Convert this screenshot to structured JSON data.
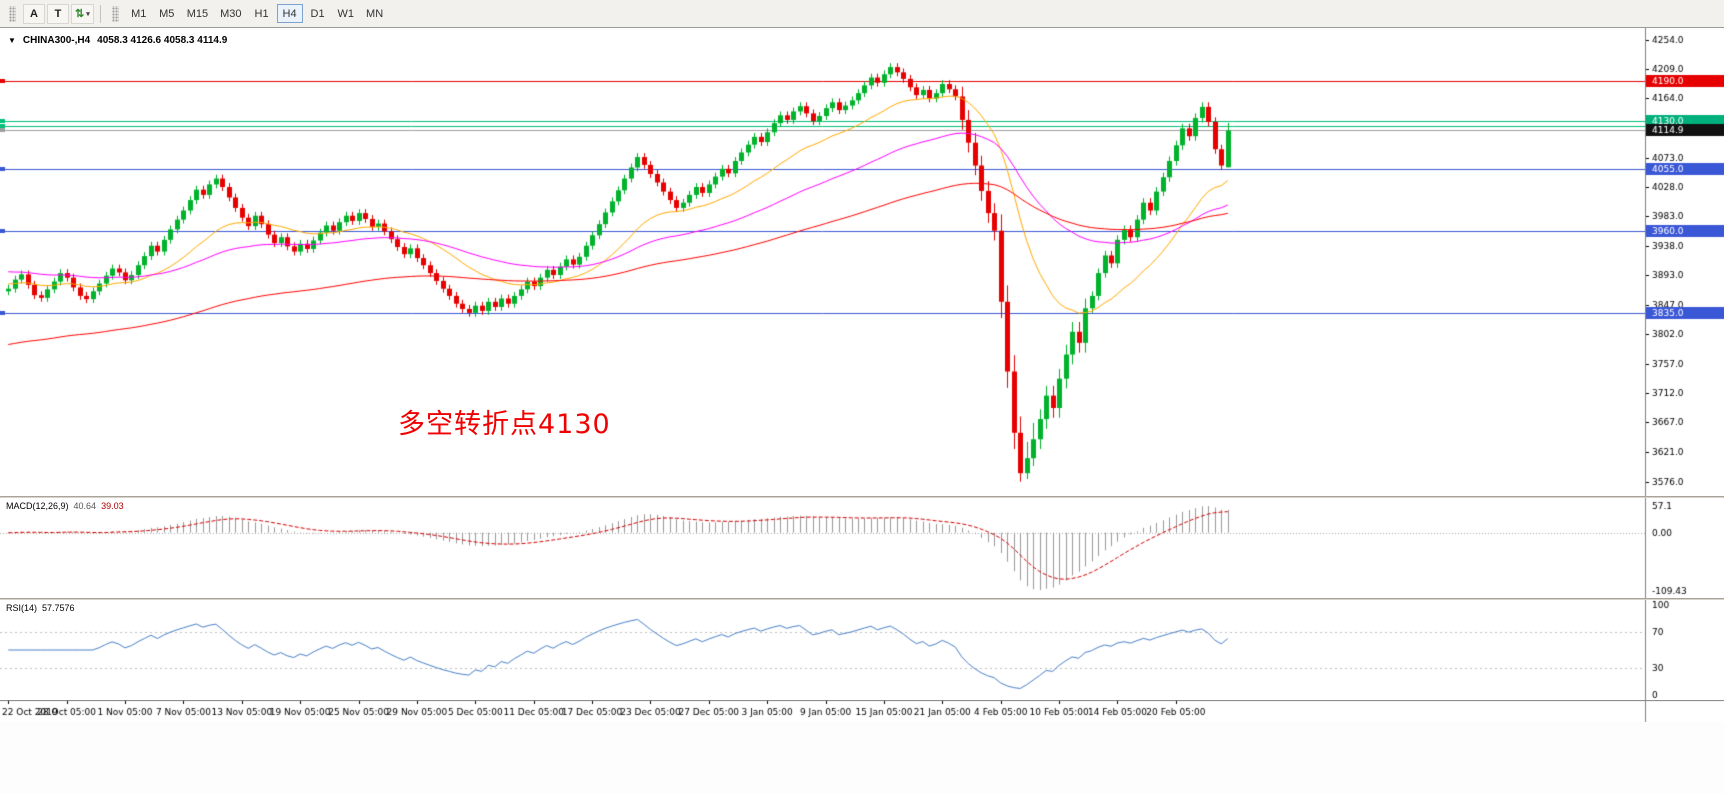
{
  "toolbar": {
    "tools": [
      {
        "label": "A"
      },
      {
        "label": "T"
      }
    ],
    "timeframes": [
      "M1",
      "M5",
      "M15",
      "M30",
      "H1",
      "H4",
      "D1",
      "W1",
      "MN"
    ],
    "active_timeframe": "H4"
  },
  "chart_data": {
    "type": "candlestick",
    "symbol_period": "CHINA300-,H4",
    "ohlc_text": "4058.3 4126.6 4058.3 4114.9",
    "current_price": 4114.9,
    "annotation": {
      "text": "多空转折点4130",
      "color": "#f00000"
    },
    "y_axis": {
      "min": 3554,
      "max": 4272,
      "ticks": [
        4254,
        4209,
        4164,
        4073,
        4028,
        3983,
        3938,
        3893,
        3847,
        3802,
        3757,
        3712,
        3667,
        3621,
        3576
      ]
    },
    "x_labels": [
      "22 Oct 2019",
      "28 Oct 05:00",
      "1 Nov 05:00",
      "7 Nov 05:00",
      "13 Nov 05:00",
      "19 Nov 05:00",
      "25 Nov 05:00",
      "29 Nov 05:00",
      "5 Dec 05:00",
      "11 Dec 05:00",
      "17 Dec 05:00",
      "23 Dec 05:00",
      "27 Dec 05:00",
      "3 Jan 05:00",
      "9 Jan 05:00",
      "15 Jan 05:00",
      "21 Jan 05:00",
      "4 Feb 05:00",
      "10 Feb 05:00",
      "14 Feb 05:00",
      "20 Feb 05:00"
    ],
    "colors": {
      "up": "#00b22c",
      "down": "#e60000",
      "macd_hist": "#999999",
      "macd_signal": "#d40000",
      "rsi": "#4a80c9",
      "bid_line": "#a0a0a0"
    },
    "moving_averages": [
      {
        "name": "ma-fast",
        "period": 21,
        "seed": 3880,
        "color": "#ffaa00"
      },
      {
        "name": "ma-mid",
        "period": 55,
        "seed": 3899,
        "color": "#ff00ff"
      },
      {
        "name": "ma-slow",
        "period": 120,
        "seed": 3785,
        "color": "#ff0000"
      }
    ],
    "levels": [
      {
        "price": 4190.0,
        "label": "4190.0",
        "color": "#e60000",
        "badge": "#e60000"
      },
      {
        "price": 4130.0,
        "label": "4130.0",
        "color": "#00c176",
        "badge": "#00b07c"
      },
      {
        "price": 4122.0,
        "label": "",
        "color": "#00c176",
        "badge": null
      },
      {
        "price": 4114.9,
        "label": "4114.9",
        "color": "#a0a0a0",
        "badge": "#111111"
      },
      {
        "price": 4055.0,
        "label": "4055.0",
        "color": "#3a57d6",
        "badge": "#3a57d6"
      },
      {
        "price": 3960.0,
        "label": "3960.0",
        "color": "#3a57d6",
        "badge": "#3a57d6"
      },
      {
        "price": 3835.0,
        "label": "3835.0",
        "color": "#3a57d6",
        "badge": "#3a57d6"
      }
    ],
    "indicators": {
      "macd": {
        "name": "MACD(12,26,9)",
        "value_main": "40.64",
        "value_signal": "39.03",
        "fast": 12,
        "slow": 26,
        "signal": 9,
        "axis_labels": [
          "57.1",
          "0.00",
          "-109.43"
        ]
      },
      "rsi": {
        "name": "RSI(14)",
        "value": "57.7576",
        "period": 14,
        "levels": [
          70,
          30
        ],
        "axis_labels": [
          "100",
          "70",
          "30",
          "0"
        ]
      }
    },
    "candles": [
      [
        3868,
        3878,
        3862,
        3872
      ],
      [
        3872,
        3892,
        3866,
        3886
      ],
      [
        3886,
        3900,
        3880,
        3894
      ],
      [
        3894,
        3900,
        3872,
        3878
      ],
      [
        3878,
        3884,
        3856,
        3862
      ],
      [
        3862,
        3868,
        3852,
        3858
      ],
      [
        3858,
        3877,
        3852,
        3871
      ],
      [
        3871,
        3889,
        3865,
        3883
      ],
      [
        3883,
        3902,
        3877,
        3896
      ],
      [
        3896,
        3902,
        3883,
        3889
      ],
      [
        3889,
        3895,
        3868,
        3874
      ],
      [
        3874,
        3880,
        3855,
        3861
      ],
      [
        3861,
        3867,
        3850,
        3856
      ],
      [
        3856,
        3874,
        3850,
        3868
      ],
      [
        3868,
        3886,
        3862,
        3880
      ],
      [
        3880,
        3898,
        3874,
        3892
      ],
      [
        3892,
        3909,
        3886,
        3903
      ],
      [
        3903,
        3909,
        3891,
        3897
      ],
      [
        3897,
        3903,
        3879,
        3885
      ],
      [
        3885,
        3899,
        3879,
        3893
      ],
      [
        3893,
        3914,
        3887,
        3908
      ],
      [
        3908,
        3928,
        3902,
        3922
      ],
      [
        3922,
        3944,
        3916,
        3938
      ],
      [
        3938,
        3944,
        3923,
        3929
      ],
      [
        3929,
        3953,
        3923,
        3947
      ],
      [
        3947,
        3969,
        3941,
        3963
      ],
      [
        3963,
        3984,
        3957,
        3978
      ],
      [
        3978,
        3998,
        3972,
        3992
      ],
      [
        3992,
        4014,
        3986,
        4008
      ],
      [
        4008,
        4030,
        4002,
        4024
      ],
      [
        4024,
        4030,
        4010,
        4016
      ],
      [
        4016,
        4038,
        4010,
        4032
      ],
      [
        4032,
        4047,
        4026,
        4041
      ],
      [
        4041,
        4047,
        4022,
        4028
      ],
      [
        4028,
        4034,
        4006,
        4012
      ],
      [
        4012,
        4018,
        3990,
        3996
      ],
      [
        3996,
        4002,
        3975,
        3981
      ],
      [
        3981,
        3987,
        3962,
        3968
      ],
      [
        3968,
        3990,
        3962,
        3984
      ],
      [
        3984,
        3990,
        3965,
        3971
      ],
      [
        3971,
        3977,
        3949,
        3955
      ],
      [
        3955,
        3961,
        3936,
        3942
      ],
      [
        3942,
        3957,
        3936,
        3951
      ],
      [
        3951,
        3957,
        3931,
        3937
      ],
      [
        3937,
        3943,
        3923,
        3929
      ],
      [
        3929,
        3947,
        3923,
        3941
      ],
      [
        3941,
        3947,
        3927,
        3933
      ],
      [
        3933,
        3952,
        3927,
        3946
      ],
      [
        3946,
        3964,
        3940,
        3958
      ],
      [
        3958,
        3975,
        3952,
        3969
      ],
      [
        3969,
        3975,
        3955,
        3961
      ],
      [
        3961,
        3980,
        3955,
        3974
      ],
      [
        3974,
        3990,
        3968,
        3984
      ],
      [
        3984,
        3990,
        3970,
        3976
      ],
      [
        3976,
        3994,
        3970,
        3988
      ],
      [
        3988,
        3994,
        3973,
        3979
      ],
      [
        3979,
        3985,
        3961,
        3967
      ],
      [
        3967,
        3978,
        3961,
        3972
      ],
      [
        3972,
        3978,
        3954,
        3960
      ],
      [
        3960,
        3966,
        3942,
        3948
      ],
      [
        3948,
        3954,
        3930,
        3936
      ],
      [
        3936,
        3942,
        3919,
        3925
      ],
      [
        3925,
        3940,
        3919,
        3934
      ],
      [
        3934,
        3940,
        3913,
        3919
      ],
      [
        3919,
        3925,
        3902,
        3908
      ],
      [
        3908,
        3914,
        3890,
        3896
      ],
      [
        3896,
        3902,
        3878,
        3884
      ],
      [
        3884,
        3890,
        3866,
        3872
      ],
      [
        3872,
        3878,
        3855,
        3861
      ],
      [
        3861,
        3867,
        3843,
        3849
      ],
      [
        3849,
        3855,
        3835,
        3841
      ],
      [
        3841,
        3847,
        3829,
        3835
      ],
      [
        3835,
        3852,
        3829,
        3846
      ],
      [
        3846,
        3852,
        3832,
        3838
      ],
      [
        3838,
        3858,
        3832,
        3852
      ],
      [
        3852,
        3858,
        3838,
        3844
      ],
      [
        3844,
        3863,
        3838,
        3857
      ],
      [
        3857,
        3863,
        3843,
        3849
      ],
      [
        3849,
        3867,
        3843,
        3861
      ],
      [
        3861,
        3877,
        3855,
        3871
      ],
      [
        3871,
        3889,
        3865,
        3883
      ],
      [
        3883,
        3889,
        3870,
        3876
      ],
      [
        3876,
        3895,
        3870,
        3889
      ],
      [
        3889,
        3907,
        3883,
        3901
      ],
      [
        3901,
        3907,
        3887,
        3893
      ],
      [
        3893,
        3912,
        3887,
        3906
      ],
      [
        3906,
        3923,
        3900,
        3917
      ],
      [
        3917,
        3923,
        3903,
        3909
      ],
      [
        3909,
        3927,
        3903,
        3921
      ],
      [
        3921,
        3944,
        3915,
        3938
      ],
      [
        3938,
        3960,
        3932,
        3954
      ],
      [
        3954,
        3977,
        3948,
        3971
      ],
      [
        3971,
        3995,
        3965,
        3989
      ],
      [
        3989,
        4012,
        3983,
        4006
      ],
      [
        4006,
        4029,
        4000,
        4023
      ],
      [
        4023,
        4047,
        4017,
        4041
      ],
      [
        4041,
        4064,
        4035,
        4058
      ],
      [
        4058,
        4080,
        4052,
        4074
      ],
      [
        4074,
        4080,
        4056,
        4062
      ],
      [
        4062,
        4068,
        4042,
        4048
      ],
      [
        4048,
        4054,
        4029,
        4035
      ],
      [
        4035,
        4041,
        4015,
        4021
      ],
      [
        4021,
        4027,
        4002,
        4008
      ],
      [
        4008,
        4014,
        3990,
        3996
      ],
      [
        3996,
        4010,
        3990,
        4004
      ],
      [
        4004,
        4022,
        3998,
        4016
      ],
      [
        4016,
        4034,
        4010,
        4028
      ],
      [
        4028,
        4034,
        4013,
        4019
      ],
      [
        4019,
        4038,
        4013,
        4032
      ],
      [
        4032,
        4050,
        4026,
        4044
      ],
      [
        4044,
        4062,
        4038,
        4056
      ],
      [
        4056,
        4062,
        4043,
        4049
      ],
      [
        4049,
        4074,
        4043,
        4068
      ],
      [
        4068,
        4087,
        4062,
        4081
      ],
      [
        4081,
        4099,
        4075,
        4093
      ],
      [
        4093,
        4111,
        4087,
        4105
      ],
      [
        4105,
        4111,
        4091,
        4097
      ],
      [
        4097,
        4118,
        4091,
        4112
      ],
      [
        4112,
        4132,
        4106,
        4126
      ],
      [
        4126,
        4144,
        4120,
        4138
      ],
      [
        4138,
        4144,
        4125,
        4131
      ],
      [
        4131,
        4150,
        4125,
        4144
      ],
      [
        4144,
        4158,
        4138,
        4152
      ],
      [
        4152,
        4158,
        4135,
        4141
      ],
      [
        4141,
        4147,
        4123,
        4129
      ],
      [
        4129,
        4143,
        4123,
        4137
      ],
      [
        4137,
        4155,
        4131,
        4149
      ],
      [
        4149,
        4164,
        4143,
        4158
      ],
      [
        4158,
        4164,
        4140,
        4146
      ],
      [
        4146,
        4159,
        4140,
        4153
      ],
      [
        4153,
        4167,
        4147,
        4161
      ],
      [
        4161,
        4178,
        4155,
        4172
      ],
      [
        4172,
        4190,
        4166,
        4184
      ],
      [
        4184,
        4202,
        4178,
        4196
      ],
      [
        4196,
        4202,
        4182,
        4188
      ],
      [
        4188,
        4207,
        4182,
        4201
      ],
      [
        4201,
        4218,
        4195,
        4212
      ],
      [
        4212,
        4218,
        4198,
        4204
      ],
      [
        4204,
        4210,
        4188,
        4194
      ],
      [
        4194,
        4200,
        4175,
        4181
      ],
      [
        4181,
        4187,
        4163,
        4169
      ],
      [
        4169,
        4183,
        4163,
        4177
      ],
      [
        4177,
        4183,
        4158,
        4164
      ],
      [
        4164,
        4178,
        4158,
        4172
      ],
      [
        4172,
        4192,
        4166,
        4186
      ],
      [
        4186,
        4192,
        4172,
        4178
      ],
      [
        4178,
        4184,
        4161,
        4167
      ],
      [
        4167,
        4182,
        4116,
        4131
      ],
      [
        4131,
        4146,
        4081,
        4096
      ],
      [
        4096,
        4111,
        4046,
        4061
      ],
      [
        4061,
        4076,
        4007,
        4022
      ],
      [
        4022,
        4037,
        3973,
        3988
      ],
      [
        3988,
        4003,
        3946,
        3961
      ],
      [
        3961,
        3986,
        3827,
        3852
      ],
      [
        3852,
        3877,
        3720,
        3745
      ],
      [
        3745,
        3770,
        3626,
        3651
      ],
      [
        3651,
        3676,
        3576,
        3589
      ],
      [
        3589,
        3637,
        3580,
        3612
      ],
      [
        3612,
        3666,
        3600,
        3641
      ],
      [
        3641,
        3687,
        3626,
        3672
      ],
      [
        3672,
        3723,
        3657,
        3708
      ],
      [
        3708,
        3723,
        3674,
        3689
      ],
      [
        3689,
        3749,
        3674,
        3734
      ],
      [
        3734,
        3786,
        3719,
        3771
      ],
      [
        3771,
        3821,
        3756,
        3806
      ],
      [
        3806,
        3821,
        3774,
        3789
      ],
      [
        3789,
        3857,
        3774,
        3842
      ],
      [
        3842,
        3868,
        3835,
        3861
      ],
      [
        3861,
        3903,
        3854,
        3896
      ],
      [
        3896,
        3930,
        3889,
        3923
      ],
      [
        3923,
        3930,
        3904,
        3911
      ],
      [
        3911,
        3954,
        3904,
        3947
      ],
      [
        3947,
        3969,
        3940,
        3962
      ],
      [
        3962,
        3969,
        3944,
        3951
      ],
      [
        3951,
        3985,
        3944,
        3978
      ],
      [
        3978,
        4011,
        3971,
        4004
      ],
      [
        4004,
        4011,
        3985,
        3992
      ],
      [
        3992,
        4028,
        3985,
        4021
      ],
      [
        4021,
        4050,
        4014,
        4043
      ],
      [
        4043,
        4075,
        4036,
        4068
      ],
      [
        4068,
        4099,
        4061,
        4092
      ],
      [
        4092,
        4125,
        4085,
        4118
      ],
      [
        4118,
        4125,
        4099,
        4106
      ],
      [
        4106,
        4141,
        4099,
        4134
      ],
      [
        4134,
        4158,
        4127,
        4151
      ],
      [
        4151,
        4158,
        4121,
        4128
      ],
      [
        4128,
        4135,
        4079,
        4086
      ],
      [
        4086,
        4093,
        4054,
        4061
      ],
      [
        4058.3,
        4126.6,
        4058.3,
        4114.9
      ]
    ]
  }
}
